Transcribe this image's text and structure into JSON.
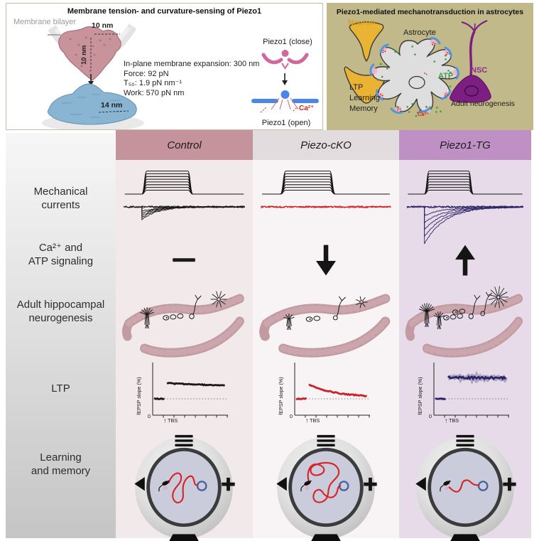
{
  "panel_left": {
    "title": "Membrane tension- and curvature-sensing of Piezo1",
    "membrane_bilayer": "Membrane bilayer",
    "protein_width": "10 nm",
    "protein_height": "10 nm",
    "flattened_width": "14 nm",
    "stats": [
      "In-plane membrane expansion: 300 nm",
      "Force: 92 pN",
      "T₅₀: 1.9 pN nm⁻¹",
      "Work: 570 pN nm"
    ],
    "piezo_closed": "Piezo1 (close)",
    "piezo_open": "Piezo1 (open)",
    "calcium": "Ca²⁺",
    "border_color": "#c6bd9e"
  },
  "panel_right": {
    "title": "Piezo1-mediated mechanotransduction in astrocytes",
    "neuron": "Neuron",
    "astrocyte": "Astrocyte",
    "atp": "ATP",
    "nsc": "NSC",
    "calcium": "Ca²⁺",
    "outcomes": [
      "LTP",
      "Learning",
      "Memory"
    ],
    "neurogenesis": "Adult neurogenesis",
    "colors": {
      "background": "#c2b98b",
      "neuron_label": "#d9a21b",
      "atp_label": "#3f9c3f",
      "nsc_label": "#8e2a8e",
      "calcium_label": "#cc2222"
    }
  },
  "table": {
    "row_labels": [
      [
        "Mechanical",
        "currents"
      ],
      [
        "Ca²⁺ and",
        "ATP signaling"
      ],
      [
        "Adult hippocampal",
        "neurogenesis"
      ],
      [
        "LTP"
      ],
      [
        "Learning",
        "and memory"
      ]
    ],
    "ltp_axis": {
      "ylabel": "fEPSP slope (%)",
      "origin": "0",
      "stim_arrow": "↑",
      "stim_label": "TBS"
    },
    "columns": [
      {
        "label": "Control",
        "header_bg": "#c4939b",
        "body_bg": "#f2e9eb",
        "trace_color": "#1a1a1a",
        "current_level": "small",
        "ca_atp_symbol": "dash",
        "neurogenesis_level": "baseline",
        "ltp": {
          "profile": "sustained",
          "peak": 1.55,
          "end": 1.42
        },
        "maze_path": "medium"
      },
      {
        "label": "Piezo-cKO",
        "header_bg": "#e2dcdf",
        "body_bg": "#f8f3f4",
        "trace_color": "#cc2027",
        "current_level": "none",
        "ca_atp_symbol": "down",
        "neurogenesis_level": "reduced",
        "ltp": {
          "profile": "decay",
          "peak": 1.5,
          "end": 1.05
        },
        "maze_path": "long"
      },
      {
        "label": "Piezo1-TG",
        "header_bg": "#bf90c4",
        "body_bg": "#e7dbe9",
        "trace_color": "#2b2466",
        "current_level": "large",
        "ca_atp_symbol": "up",
        "neurogenesis_level": "increased",
        "ltp": {
          "profile": "enhanced",
          "peak": 1.75,
          "end": 1.68
        },
        "maze_path": "short"
      }
    ]
  }
}
